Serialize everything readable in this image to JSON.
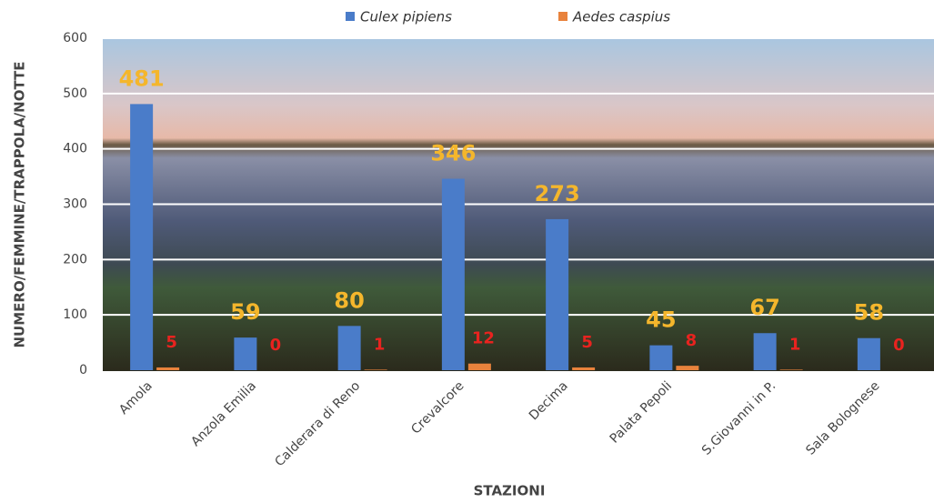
{
  "chart_data": {
    "type": "bar",
    "x_label": "STAZIONI",
    "y_label": "NUMERO/FEMMINE/TRAPPOLA/NOTTE",
    "categories": [
      "Amola",
      "Anzola Emilia",
      "Calderara di Reno",
      "Crevalcore",
      "Decima",
      "Palata Pepoli",
      "S.Giovanni in P.",
      "Sala Bolognese"
    ],
    "series": [
      {
        "name": "Culex pipiens",
        "color": "#4a7cc9",
        "values": [
          481,
          59,
          80,
          346,
          273,
          45,
          67,
          58
        ]
      },
      {
        "name": "Aedes caspius",
        "color": "#e8823c",
        "values": [
          5,
          0,
          1,
          12,
          5,
          8,
          1,
          0
        ]
      }
    ],
    "ylim": [
      0,
      600
    ],
    "yticks": [
      0,
      100,
      200,
      300,
      400,
      500,
      600
    ],
    "grid": true
  }
}
